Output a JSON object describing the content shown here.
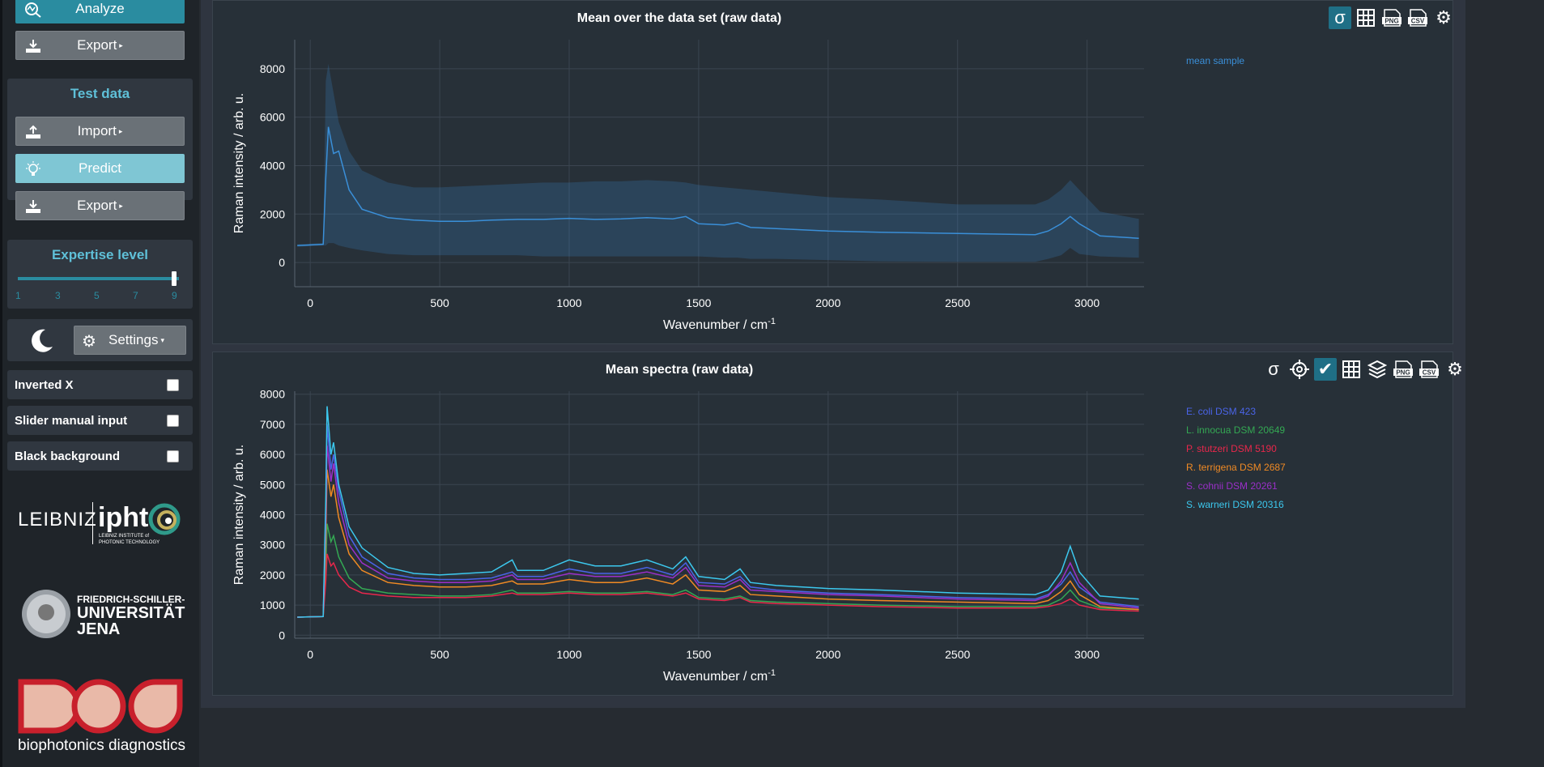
{
  "sidebar": {
    "analyze_label": "Analyze",
    "train_export_label": "Export",
    "test_title": "Test data",
    "import_label": "Import",
    "predict_label": "Predict",
    "test_export_label": "Export",
    "expertise_title": "Expertise level",
    "expertise_ticks": [
      "1",
      "3",
      "5",
      "7",
      "9"
    ],
    "expertise_value": 9,
    "settings_label": "Settings",
    "toggles": [
      {
        "label": "Inverted X",
        "checked": false
      },
      {
        "label": "Slider manual input",
        "checked": false
      },
      {
        "label": "Black background",
        "checked": false
      }
    ],
    "logos": {
      "leibniz": "LEIBNIZ",
      "ipht": "ipht",
      "ipht_sub1": "LEIBNIZ INSTITUTE of",
      "ipht_sub2": "PHOTONIC TECHNOLOGY",
      "jena1": "FRIEDRICH-SCHILLER-",
      "jena2": "UNIVERSITÄT",
      "jena3": "JENA",
      "bpd": "biophotonics diagnostics"
    }
  },
  "colors": {
    "accent": "#2a8ca0",
    "title": "#5fc0d8",
    "mean": "#3a8fd8"
  },
  "chart_data": [
    {
      "type": "area",
      "title": "Mean over the data set (raw data)",
      "xlabel": "Wavenumber / cm",
      "xlabel_sup": "-1",
      "ylabel": "Raman intensity / arb. u.",
      "xlim": [
        -60,
        3220
      ],
      "ylim": [
        -1000,
        9200
      ],
      "xticks": [
        0,
        500,
        1000,
        1500,
        2000,
        2500,
        3000
      ],
      "yticks": [
        0,
        2000,
        4000,
        6000,
        8000
      ],
      "legend": "right",
      "series": [
        {
          "name": "mean sample",
          "color": "#3a8fd8",
          "x": [
            -50,
            50,
            60,
            70,
            90,
            110,
            150,
            200,
            300,
            400,
            500,
            600,
            700,
            800,
            900,
            1000,
            1100,
            1200,
            1300,
            1400,
            1450,
            1500,
            1600,
            1650,
            1700,
            1800,
            2000,
            2200,
            2500,
            2800,
            2850,
            2900,
            2935,
            2970,
            3050,
            3200
          ],
          "y": [
            700,
            750,
            3500,
            5600,
            4500,
            4600,
            3000,
            2200,
            1850,
            1750,
            1700,
            1700,
            1750,
            1780,
            1780,
            1820,
            1780,
            1800,
            1850,
            1800,
            1900,
            1600,
            1550,
            1650,
            1450,
            1400,
            1300,
            1250,
            1200,
            1150,
            1300,
            1600,
            1900,
            1600,
            1100,
            1000
          ],
          "lower": [
            650,
            700,
            700,
            800,
            800,
            700,
            600,
            500,
            350,
            300,
            300,
            300,
            300,
            300,
            250,
            250,
            250,
            250,
            250,
            250,
            250,
            250,
            200,
            200,
            150,
            150,
            100,
            50,
            30,
            30,
            150,
            300,
            600,
            350,
            250,
            200
          ],
          "upper": [
            750,
            800,
            7500,
            8200,
            7000,
            5800,
            4600,
            3800,
            3300,
            3100,
            3100,
            3150,
            3200,
            3250,
            3300,
            3300,
            3350,
            3350,
            3400,
            3350,
            3300,
            3200,
            3100,
            3050,
            3000,
            2900,
            2700,
            2600,
            2400,
            2400,
            2600,
            3000,
            3400,
            3000,
            2100,
            1800
          ]
        }
      ]
    },
    {
      "type": "line",
      "title": "Mean spectra (raw data)",
      "xlabel": "Wavenumber / cm",
      "xlabel_sup": "-1",
      "ylabel": "Raman intensity / arb. u.",
      "xlim": [
        -60,
        3220
      ],
      "ylim": [
        -100,
        8100
      ],
      "xticks": [
        0,
        500,
        1000,
        1500,
        2000,
        2500,
        3000
      ],
      "yticks": [
        0,
        1000,
        2000,
        3000,
        4000,
        5000,
        6000,
        7000,
        8000
      ],
      "legend": "right",
      "x": [
        -50,
        50,
        60,
        65,
        80,
        90,
        110,
        150,
        200,
        300,
        400,
        500,
        600,
        700,
        780,
        800,
        900,
        1000,
        1100,
        1200,
        1300,
        1400,
        1450,
        1500,
        1600,
        1660,
        1700,
        1800,
        2000,
        2200,
        2500,
        2800,
        2850,
        2900,
        2935,
        2970,
        3050,
        3200
      ],
      "series": [
        {
          "name": "E. coli DSM 423",
          "color": "#4a64e8",
          "values": [
            600,
            620,
            4000,
            7000,
            5500,
            6000,
            4800,
            3300,
            2600,
            2050,
            1900,
            1850,
            1850,
            1900,
            2100,
            1950,
            1950,
            2200,
            2050,
            2050,
            2250,
            2000,
            2400,
            1750,
            1700,
            1950,
            1600,
            1500,
            1400,
            1350,
            1250,
            1200,
            1350,
            1700,
            2100,
            1600,
            1100,
            950
          ]
        },
        {
          "name": "L. innocua DSM 20649",
          "color": "#34a853",
          "values": [
            600,
            620,
            2200,
            3700,
            3100,
            3300,
            2600,
            1900,
            1550,
            1400,
            1350,
            1300,
            1300,
            1350,
            1500,
            1400,
            1400,
            1450,
            1400,
            1400,
            1450,
            1350,
            1500,
            1250,
            1200,
            1300,
            1150,
            1100,
            1050,
            1000,
            950,
            950,
            1000,
            1200,
            1500,
            1150,
            900,
            850
          ]
        },
        {
          "name": "P. stutzeri DSM 5190",
          "color": "#e8274b",
          "values": [
            600,
            620,
            1800,
            2700,
            2300,
            2400,
            2000,
            1600,
            1400,
            1300,
            1250,
            1250,
            1250,
            1300,
            1400,
            1350,
            1350,
            1400,
            1350,
            1350,
            1400,
            1300,
            1400,
            1200,
            1150,
            1250,
            1100,
            1050,
            1000,
            950,
            900,
            900,
            950,
            1050,
            1200,
            1000,
            850,
            800
          ]
        },
        {
          "name": "R. terrigena DSM 2687",
          "color": "#f08a24",
          "values": [
            600,
            620,
            3200,
            5500,
            4600,
            5000,
            3900,
            2700,
            2150,
            1750,
            1650,
            1600,
            1600,
            1650,
            1800,
            1700,
            1700,
            1850,
            1750,
            1750,
            1900,
            1700,
            2000,
            1500,
            1450,
            1650,
            1350,
            1300,
            1200,
            1150,
            1100,
            1050,
            1150,
            1450,
            1800,
            1350,
            950,
            850
          ]
        },
        {
          "name": "S. cohnii DSM 20261",
          "color": "#9b2fc9",
          "values": [
            600,
            620,
            3800,
            6300,
            5100,
            5700,
            4400,
            3000,
            2400,
            1900,
            1800,
            1750,
            1750,
            1800,
            2000,
            1850,
            1850,
            2050,
            1950,
            1950,
            2100,
            1900,
            2250,
            1650,
            1600,
            1850,
            1500,
            1450,
            1350,
            1300,
            1200,
            1150,
            1300,
            1800,
            2400,
            1750,
            1050,
            900
          ]
        },
        {
          "name": "S. warneri DSM 20316",
          "color": "#3cc8ee",
          "values": [
            600,
            620,
            4500,
            7600,
            6000,
            6400,
            5000,
            3600,
            2900,
            2250,
            2050,
            2000,
            2050,
            2100,
            2500,
            2150,
            2150,
            2500,
            2300,
            2300,
            2500,
            2200,
            2600,
            1950,
            1850,
            2200,
            1750,
            1650,
            1550,
            1500,
            1400,
            1350,
            1500,
            2100,
            2950,
            2100,
            1300,
            1200
          ]
        }
      ]
    }
  ]
}
